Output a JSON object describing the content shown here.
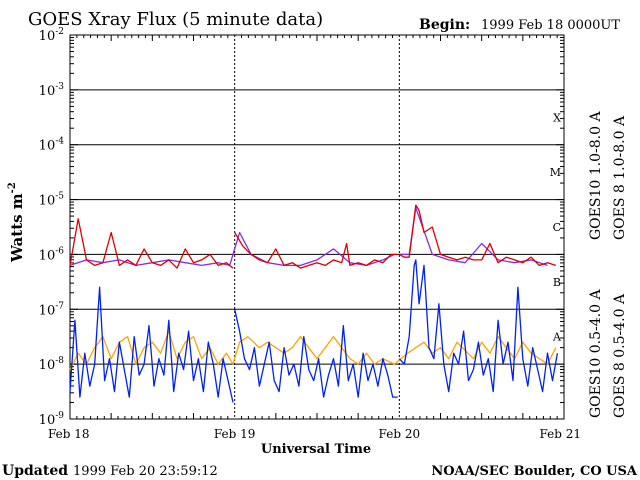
{
  "chart_data": {
    "type": "line",
    "title": "GOES Xray Flux (5 minute data)",
    "begin_label": "Begin:",
    "begin_value": "1999 Feb 18 0000UT",
    "ylabel": "Watts m",
    "ylabel_exp": "-2",
    "xlabel": "Universal Time",
    "yscale": "log",
    "ylim": [
      1e-09,
      0.01
    ],
    "y_ticks": [
      {
        "exp": -9,
        "label": "10",
        "sup": "-9"
      },
      {
        "exp": -8,
        "label": "10",
        "sup": "-8"
      },
      {
        "exp": -7,
        "label": "10",
        "sup": "-7"
      },
      {
        "exp": -6,
        "label": "10",
        "sup": "-6"
      },
      {
        "exp": -5,
        "label": "10",
        "sup": "-5"
      },
      {
        "exp": -4,
        "label": "10",
        "sup": "-4"
      },
      {
        "exp": -3,
        "label": "10",
        "sup": "-3"
      },
      {
        "exp": -2,
        "label": "10",
        "sup": "-2"
      }
    ],
    "x_ticks": [
      "Feb 18",
      "Feb 19",
      "Feb 20",
      "Feb 21"
    ],
    "xlim_days": [
      0,
      3
    ],
    "flare_classes": [
      {
        "label": "A",
        "exp": -7.5
      },
      {
        "label": "B",
        "exp": -6.5
      },
      {
        "label": "C",
        "exp": -5.5
      },
      {
        "label": "M",
        "exp": -4.5
      },
      {
        "label": "X",
        "exp": -3.5
      }
    ],
    "legend_placement": "right-vertical",
    "series": [
      {
        "name": "GOES10 1.0-8.0 A",
        "color": "#8a2be2",
        "day": [
          0.0,
          0.1,
          0.2,
          0.3,
          0.4,
          0.5,
          0.6,
          0.7,
          0.8,
          0.9,
          0.97,
          1.03,
          1.1,
          1.2,
          1.3,
          1.4,
          1.5,
          1.6,
          1.7,
          1.8,
          1.9,
          1.97,
          2.0,
          2.06,
          2.1,
          2.2,
          2.3,
          2.4,
          2.5,
          2.6,
          2.7,
          2.8,
          2.9,
          3.0
        ],
        "log_flux": [
          -6.2,
          -6.1,
          -6.15,
          -6.1,
          -6.2,
          -6.15,
          -6.1,
          -6.15,
          -6.2,
          -6.15,
          -6.2,
          -5.6,
          -6.0,
          -6.15,
          -6.2,
          -6.2,
          -6.1,
          -5.9,
          -6.15,
          -6.2,
          -6.1,
          -6.0,
          -6.0,
          -6.0,
          -5.15,
          -6.0,
          -6.1,
          -6.15,
          -5.8,
          -6.1,
          -6.15,
          -6.1,
          -6.2,
          -6.25
        ]
      },
      {
        "name": "GOES 8 1.0-8.0 A",
        "color": "#dd0000",
        "day": [
          0.0,
          0.05,
          0.1,
          0.15,
          0.2,
          0.25,
          0.3,
          0.35,
          0.4,
          0.45,
          0.5,
          0.55,
          0.6,
          0.65,
          0.7,
          0.75,
          0.8,
          0.85,
          0.9,
          0.95,
          0.99,
          1.0,
          1.02,
          1.05,
          1.1,
          1.15,
          1.2,
          1.25,
          1.3,
          1.35,
          1.4,
          1.45,
          1.5,
          1.55,
          1.6,
          1.65,
          1.68,
          1.7,
          1.75,
          1.8,
          1.85,
          1.9,
          1.95,
          1.99,
          2.0,
          2.03,
          2.06,
          2.1,
          2.12,
          2.15,
          2.2,
          2.25,
          2.3,
          2.35,
          2.4,
          2.45,
          2.5,
          2.55,
          2.6,
          2.65,
          2.7,
          2.75,
          2.8,
          2.85,
          2.9,
          2.95,
          3.0
        ],
        "log_flux": [
          -6.2,
          -5.35,
          -6.1,
          -6.2,
          -6.15,
          -5.6,
          -6.2,
          -6.1,
          -6.2,
          -5.9,
          -6.15,
          -6.2,
          -6.1,
          -6.25,
          -5.9,
          -6.15,
          -6.1,
          -6.0,
          -6.2,
          -6.15,
          -6.25,
          -5.6,
          -5.7,
          -5.85,
          -6.0,
          -6.1,
          -6.15,
          -5.9,
          -6.2,
          -6.15,
          -6.25,
          -6.2,
          -6.15,
          -6.2,
          -6.1,
          -6.15,
          -5.8,
          -6.2,
          -6.15,
          -6.2,
          -6.1,
          -6.15,
          -6.0,
          -6.0,
          -6.0,
          -6.05,
          -6.05,
          -5.1,
          -5.2,
          -5.6,
          -5.5,
          -6.0,
          -6.05,
          -6.1,
          -6.05,
          -6.1,
          -6.1,
          -5.8,
          -6.15,
          -6.05,
          -6.1,
          -6.15,
          -6.05,
          -6.2,
          -6.15,
          -6.2,
          -6.25
        ]
      },
      {
        "name": "GOES10 0.5-4.0 A",
        "color": "#ffa500",
        "day": [
          0.0,
          0.05,
          0.1,
          0.15,
          0.2,
          0.25,
          0.3,
          0.35,
          0.4,
          0.45,
          0.5,
          0.55,
          0.6,
          0.65,
          0.7,
          0.75,
          0.8,
          0.85,
          0.9,
          0.95,
          0.99,
          1.03,
          1.08,
          1.15,
          1.2,
          1.3,
          1.35,
          1.4,
          1.5,
          1.6,
          1.7,
          1.75,
          1.8,
          1.85,
          1.9,
          1.97,
          2.05,
          2.1,
          2.15,
          2.2,
          2.25,
          2.3,
          2.35,
          2.45,
          2.5,
          2.55,
          2.6,
          2.7,
          2.75,
          2.8,
          2.9,
          2.95,
          3.0
        ],
        "log_flux": [
          -8.1,
          -7.8,
          -8.0,
          -7.7,
          -7.5,
          -7.9,
          -7.6,
          -7.5,
          -8.0,
          -7.7,
          -7.6,
          -7.8,
          -7.4,
          -7.9,
          -7.6,
          -7.5,
          -7.9,
          -7.7,
          -8.0,
          -7.8,
          -8.0,
          -7.6,
          -7.5,
          -7.7,
          -7.6,
          -7.8,
          -7.7,
          -7.5,
          -7.9,
          -7.5,
          -7.9,
          -8.0,
          -7.8,
          -8.0,
          -7.9,
          -8.0,
          -7.8,
          -7.7,
          -7.6,
          -7.8,
          -7.7,
          -7.9,
          -7.6,
          -7.9,
          -7.6,
          -7.8,
          -7.5,
          -7.9,
          -7.6,
          -7.8,
          -8.0,
          -7.7,
          -8.1
        ]
      },
      {
        "name": "GOES 8 0.5-4.0 A",
        "color": "#0022ee",
        "day": [
          0.0,
          0.03,
          0.06,
          0.09,
          0.12,
          0.15,
          0.18,
          0.21,
          0.24,
          0.27,
          0.3,
          0.33,
          0.36,
          0.39,
          0.42,
          0.45,
          0.48,
          0.51,
          0.54,
          0.57,
          0.6,
          0.63,
          0.66,
          0.69,
          0.72,
          0.75,
          0.78,
          0.81,
          0.84,
          0.87,
          0.9,
          0.93,
          0.96,
          0.99,
          1.0,
          1.03,
          1.06,
          1.09,
          1.12,
          1.15,
          1.18,
          1.21,
          1.24,
          1.27,
          1.3,
          1.33,
          1.36,
          1.39,
          1.42,
          1.45,
          1.48,
          1.51,
          1.54,
          1.57,
          1.6,
          1.63,
          1.66,
          1.69,
          1.72,
          1.75,
          1.78,
          1.81,
          1.84,
          1.87,
          1.9,
          1.93,
          1.96,
          1.99,
          2.0,
          2.03,
          2.06,
          2.09,
          2.1,
          2.12,
          2.15,
          2.18,
          2.21,
          2.24,
          2.27,
          2.3,
          2.33,
          2.36,
          2.39,
          2.42,
          2.45,
          2.48,
          2.51,
          2.54,
          2.57,
          2.6,
          2.63,
          2.66,
          2.69,
          2.72,
          2.75,
          2.78,
          2.81,
          2.84,
          2.87,
          2.9,
          2.93,
          2.96,
          3.0
        ],
        "log_flux": [
          -8.5,
          -7.2,
          -8.6,
          -7.8,
          -8.4,
          -8.0,
          -6.6,
          -8.3,
          -7.9,
          -8.5,
          -7.6,
          -8.1,
          -8.6,
          -7.5,
          -8.2,
          -8.0,
          -7.3,
          -8.4,
          -7.9,
          -8.2,
          -7.2,
          -8.5,
          -7.8,
          -8.1,
          -7.4,
          -8.3,
          -7.9,
          -8.5,
          -7.6,
          -8.0,
          -8.6,
          -7.9,
          -8.3,
          -8.7,
          -7.0,
          -7.4,
          -7.9,
          -8.1,
          -7.7,
          -8.4,
          -8.0,
          -7.6,
          -8.3,
          -8.5,
          -7.7,
          -8.2,
          -8.0,
          -8.4,
          -7.5,
          -8.1,
          -8.3,
          -7.9,
          -8.6,
          -8.2,
          -7.9,
          -8.4,
          -7.3,
          -8.3,
          -8.0,
          -8.6,
          -7.8,
          -8.3,
          -8.0,
          -8.4,
          -7.9,
          -8.2,
          -8.6,
          -8.6,
          -7.9,
          -8.0,
          -7.5,
          -6.2,
          -6.1,
          -6.9,
          -6.2,
          -7.7,
          -7.9,
          -6.9,
          -8.0,
          -8.5,
          -7.8,
          -8.0,
          -7.4,
          -8.3,
          -8.1,
          -7.6,
          -8.2,
          -7.9,
          -8.5,
          -7.2,
          -8.0,
          -7.6,
          -8.3,
          -6.6,
          -7.9,
          -8.4,
          -7.7,
          -8.1,
          -8.5,
          -7.8,
          -8.3,
          -7.8,
          -8.6
        ]
      }
    ]
  },
  "footer": {
    "updated_label": "Updated",
    "updated_value": "1999 Feb 20 23:59:12",
    "credit": "NOAA/SEC Boulder, CO USA"
  }
}
